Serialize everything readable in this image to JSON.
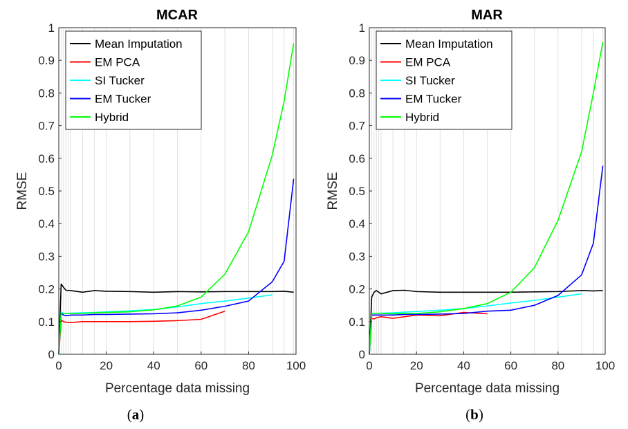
{
  "chart_data": [
    {
      "type": "line",
      "title": "MCAR",
      "caption_open": "(",
      "caption_letter": "a",
      "caption_close": ")",
      "xlabel": "Percentage data missing",
      "ylabel": "RMSE",
      "xlim": [
        0,
        100
      ],
      "ylim": [
        0,
        1
      ],
      "x_ticks": [
        "0",
        "20",
        "40",
        "60",
        "80",
        "100"
      ],
      "y_ticks": [
        "0",
        "0.1",
        "0.2",
        "0.3",
        "0.4",
        "0.5",
        "0.6",
        "0.7",
        "0.8",
        "0.9",
        "1"
      ],
      "grid_x": [
        1,
        2,
        3,
        4,
        5,
        10,
        15,
        20,
        30,
        40,
        50,
        60,
        70,
        80,
        90,
        95,
        99
      ],
      "legend_position": "top-left",
      "series": [
        {
          "name": "Mean Imputation",
          "color": "#000000",
          "x": [
            0,
            1,
            2,
            3,
            5,
            10,
            15,
            20,
            30,
            40,
            50,
            60,
            70,
            80,
            90,
            95,
            99
          ],
          "y": [
            0.0,
            0.215,
            0.205,
            0.196,
            0.195,
            0.19,
            0.195,
            0.193,
            0.192,
            0.19,
            0.192,
            0.191,
            0.192,
            0.192,
            0.192,
            0.193,
            0.19
          ]
        },
        {
          "name": "EM PCA",
          "color": "#ff0000",
          "x": [
            0,
            1,
            2,
            3,
            5,
            10,
            15,
            20,
            30,
            40,
            50,
            60,
            70
          ],
          "y": [
            0.0,
            0.105,
            0.1,
            0.098,
            0.097,
            0.1,
            0.1,
            0.1,
            0.1,
            0.101,
            0.103,
            0.107,
            0.132
          ]
        },
        {
          "name": "SI Tucker",
          "color": "#00ffff",
          "x": [
            0,
            1,
            2,
            3,
            5,
            10,
            15,
            20,
            30,
            40,
            50,
            60,
            70,
            80,
            90
          ],
          "y": [
            0.0,
            0.13,
            0.125,
            0.124,
            0.126,
            0.127,
            0.128,
            0.13,
            0.133,
            0.137,
            0.145,
            0.155,
            0.163,
            0.172,
            0.182
          ]
        },
        {
          "name": "EM Tucker",
          "color": "#0000ff",
          "x": [
            0,
            1,
            2,
            3,
            5,
            10,
            15,
            20,
            30,
            40,
            50,
            60,
            70,
            80,
            90,
            95,
            99
          ],
          "y": [
            0.0,
            0.125,
            0.12,
            0.118,
            0.12,
            0.12,
            0.122,
            0.122,
            0.123,
            0.124,
            0.127,
            0.135,
            0.147,
            0.163,
            0.222,
            0.285,
            0.537
          ]
        },
        {
          "name": "Hybrid",
          "color": "#00ff00",
          "x": [
            0,
            1,
            2,
            3,
            5,
            10,
            15,
            20,
            30,
            40,
            50,
            60,
            70,
            80,
            90,
            95,
            99
          ],
          "y": [
            0.0,
            0.125,
            0.125,
            0.125,
            0.125,
            0.125,
            0.127,
            0.128,
            0.13,
            0.136,
            0.148,
            0.175,
            0.245,
            0.375,
            0.61,
            0.775,
            0.952
          ]
        }
      ]
    },
    {
      "type": "line",
      "title": "MAR",
      "caption_open": "(",
      "caption_letter": "b",
      "caption_close": ")",
      "xlabel": "Percentage data missing",
      "ylabel": "RMSE",
      "xlim": [
        0,
        100
      ],
      "ylim": [
        0,
        1
      ],
      "x_ticks": [
        "0",
        "20",
        "40",
        "60",
        "80",
        "100"
      ],
      "y_ticks": [
        "0",
        "0.1",
        "0.2",
        "0.3",
        "0.4",
        "0.5",
        "0.6",
        "0.7",
        "0.8",
        "0.9",
        "1"
      ],
      "grid_x": [
        1,
        2,
        3,
        4,
        5,
        10,
        15,
        20,
        30,
        40,
        50,
        60,
        70,
        80,
        90,
        95,
        99
      ],
      "legend_position": "top-left",
      "series": [
        {
          "name": "Mean Imputation",
          "color": "#000000",
          "x": [
            0,
            1,
            2,
            3,
            5,
            10,
            15,
            20,
            30,
            40,
            50,
            60,
            70,
            80,
            90,
            95,
            99
          ],
          "y": [
            0.0,
            0.175,
            0.19,
            0.195,
            0.185,
            0.195,
            0.196,
            0.192,
            0.19,
            0.19,
            0.19,
            0.19,
            0.191,
            0.192,
            0.195,
            0.194,
            0.195
          ]
        },
        {
          "name": "EM PCA",
          "color": "#ff0000",
          "x": [
            0,
            1,
            2,
            3,
            5,
            10,
            15,
            20,
            30,
            40,
            50
          ],
          "y": [
            0.0,
            0.11,
            0.108,
            0.112,
            0.115,
            0.11,
            0.115,
            0.12,
            0.118,
            0.128,
            0.124
          ]
        },
        {
          "name": "SI Tucker",
          "color": "#00ffff",
          "x": [
            0,
            1,
            2,
            3,
            5,
            10,
            15,
            20,
            30,
            40,
            50,
            60,
            70,
            80,
            90
          ],
          "y": [
            0.0,
            0.125,
            0.125,
            0.125,
            0.126,
            0.127,
            0.129,
            0.131,
            0.135,
            0.14,
            0.148,
            0.157,
            0.165,
            0.175,
            0.185
          ]
        },
        {
          "name": "EM Tucker",
          "color": "#0000ff",
          "x": [
            0,
            1,
            2,
            3,
            5,
            10,
            15,
            20,
            30,
            40,
            50,
            60,
            70,
            80,
            90,
            95,
            99
          ],
          "y": [
            0.0,
            0.12,
            0.12,
            0.12,
            0.12,
            0.12,
            0.122,
            0.122,
            0.123,
            0.125,
            0.132,
            0.135,
            0.15,
            0.18,
            0.243,
            0.34,
            0.577
          ]
        },
        {
          "name": "Hybrid",
          "color": "#00ff00",
          "x": [
            0,
            1,
            2,
            3,
            5,
            10,
            15,
            20,
            30,
            40,
            50,
            60,
            70,
            80,
            90,
            95,
            99
          ],
          "y": [
            0.0,
            0.125,
            0.125,
            0.125,
            0.125,
            0.124,
            0.125,
            0.125,
            0.13,
            0.14,
            0.155,
            0.19,
            0.265,
            0.41,
            0.62,
            0.8,
            0.955
          ]
        }
      ]
    }
  ]
}
